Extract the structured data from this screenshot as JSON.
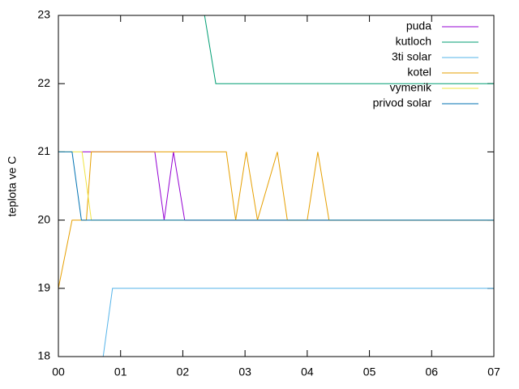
{
  "chart_data": {
    "type": "line",
    "y_label": "teplota ve C",
    "xlim": [
      0,
      7
    ],
    "xticks": [
      {
        "value": 0,
        "label": "00"
      },
      {
        "value": 1,
        "label": "01"
      },
      {
        "value": 2,
        "label": "02"
      },
      {
        "value": 3,
        "label": "03"
      },
      {
        "value": 4,
        "label": "04"
      },
      {
        "value": 5,
        "label": "05"
      },
      {
        "value": 6,
        "label": "06"
      },
      {
        "value": 7,
        "label": "07"
      }
    ],
    "ylim": [
      18,
      23
    ],
    "yticks": [
      18,
      19,
      20,
      21,
      22,
      23
    ],
    "legend": "top-right",
    "series": [
      {
        "name": "puda",
        "color": "#9400d3",
        "x": [
          0.38,
          1.55,
          1.7,
          1.85,
          2.03,
          7
        ],
        "values": [
          21,
          21,
          20,
          21,
          20,
          20
        ]
      },
      {
        "name": "kutloch",
        "color": "#009e73",
        "x": [
          2.35,
          2.53,
          7
        ],
        "values": [
          23,
          22,
          22
        ]
      },
      {
        "name": "3ti solar",
        "color": "#56b4e9",
        "x": [
          0.72,
          0.87,
          7
        ],
        "values": [
          18,
          19,
          19
        ]
      },
      {
        "name": "kotel",
        "color": "#e69f00",
        "x": [
          0,
          0.22,
          0.45,
          0.53,
          2.7,
          2.85,
          3.02,
          3.2,
          3.52,
          3.68,
          4.0,
          4.17,
          4.35,
          7
        ],
        "values": [
          19,
          20,
          20,
          21,
          21,
          20,
          21,
          20,
          21,
          20,
          20,
          21,
          20,
          20
        ]
      },
      {
        "name": "vymenik",
        "color": "#f0e442",
        "x": [
          0,
          0.38,
          0.53,
          7
        ],
        "values": [
          21,
          21,
          20,
          20
        ]
      },
      {
        "name": "privod solar",
        "color": "#0072b2",
        "x": [
          0,
          0.22,
          0.37,
          7
        ],
        "values": [
          21,
          21,
          20,
          20
        ]
      }
    ]
  }
}
